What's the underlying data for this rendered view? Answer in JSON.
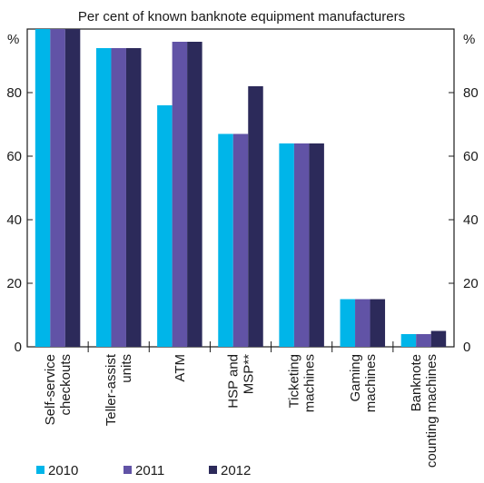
{
  "chart_data": {
    "type": "bar",
    "title": "",
    "subtitle": "Per cent of known banknote equipment manufacturers",
    "ylabel_left": "%",
    "ylabel_right": "%",
    "ylim": [
      0,
      100
    ],
    "yticks": [
      0,
      20,
      40,
      60,
      80
    ],
    "grid": false,
    "legend_position": "bottom-left",
    "categories": [
      [
        "Self-service",
        "checkouts"
      ],
      [
        "Teller-assist",
        "units"
      ],
      [
        "ATM"
      ],
      [
        "HSP and",
        "MSP**"
      ],
      [
        "Ticketing",
        "machines"
      ],
      [
        "Gaming",
        "machines"
      ],
      [
        "Banknote",
        "counting machines"
      ]
    ],
    "series": [
      {
        "name": "2010",
        "color": "#00b5e9",
        "values": [
          100,
          94,
          76,
          67,
          64,
          15,
          4
        ]
      },
      {
        "name": "2011",
        "color": "#6153a6",
        "values": [
          100,
          94,
          96,
          67,
          64,
          15,
          4
        ]
      },
      {
        "name": "2012",
        "color": "#2c2a5a",
        "values": [
          100,
          94,
          96,
          82,
          64,
          15,
          5
        ]
      }
    ]
  }
}
